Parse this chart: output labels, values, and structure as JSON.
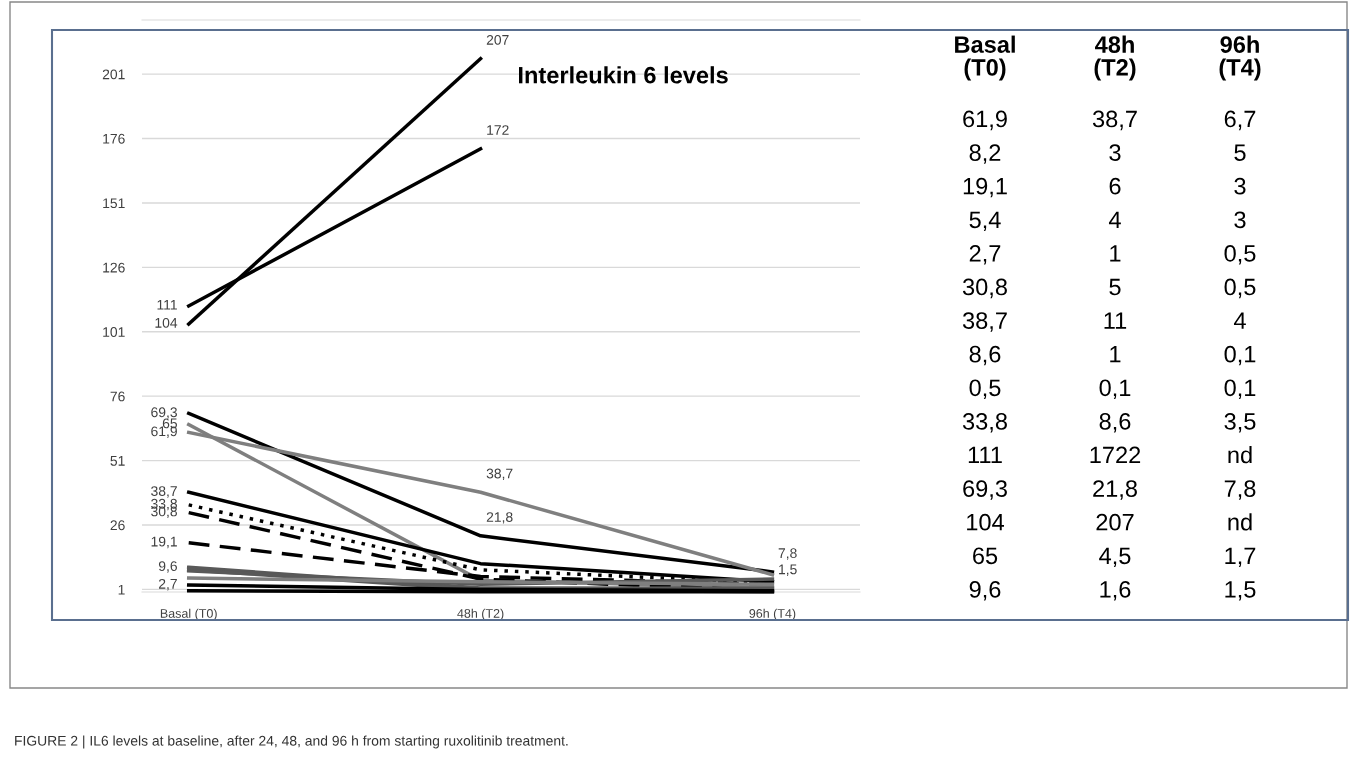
{
  "chart_data": [
    {
      "type": "line",
      "title": "Interleukin 6 levels",
      "categories": [
        "Basal (T0)",
        "48h (T2)",
        "96h (T4)"
      ],
      "ylim": [
        0,
        222
      ],
      "yticks": [
        1,
        26,
        51,
        76,
        101,
        126,
        151,
        176,
        201
      ],
      "grid": "y",
      "marker": "none",
      "annotations": [
        "FIGURE 2 | IL6 levels at baseline, after 24, 48, and 96 h from starting ruxolitinib treatment."
      ],
      "series": [
        {
          "color": "#7f7f7f",
          "values": [
            61.9,
            38.7,
            6.7
          ],
          "value_labels": [
            "61,9",
            "38,7",
            null
          ]
        },
        {
          "color": "#595959",
          "values": [
            8.2,
            3,
            5
          ],
          "value_labels": [
            null,
            null,
            null
          ]
        },
        {
          "color": "#000000",
          "line_style": "dashed",
          "values": [
            19.1,
            6,
            3
          ],
          "value_labels": [
            "19,1",
            null,
            null
          ]
        },
        {
          "color": "#7f7f7f",
          "values": [
            5.4,
            4,
            3
          ],
          "value_labels": [
            null,
            null,
            null
          ]
        },
        {
          "color": "#000000",
          "values": [
            2.7,
            1,
            0.5
          ],
          "value_labels": [
            "2,7",
            null,
            null
          ]
        },
        {
          "color": "#000000",
          "line_style": "dashed",
          "values": [
            30.8,
            5,
            0.5
          ],
          "value_labels": [
            "30,8",
            null,
            null
          ]
        },
        {
          "color": "#000000",
          "values": [
            38.7,
            11,
            4
          ],
          "value_labels": [
            "38,7",
            null,
            null
          ]
        },
        {
          "color": "#595959",
          "values": [
            8.6,
            1,
            0.1
          ],
          "value_labels": [
            null,
            null,
            null
          ]
        },
        {
          "color": "#000000",
          "values": [
            0.5,
            0.1,
            0.1
          ],
          "value_labels": [
            null,
            null,
            null
          ]
        },
        {
          "color": "#000000",
          "line_style": "dotted",
          "values": [
            33.8,
            8.6,
            3.5
          ],
          "value_labels": [
            "33,8",
            null,
            null
          ]
        },
        {
          "color": "#000000",
          "values": [
            111,
            172,
            null
          ],
          "value_labels": [
            "111",
            "172",
            null
          ]
        },
        {
          "color": "#000000",
          "values": [
            69.3,
            21.8,
            7.8
          ],
          "value_labels": [
            "69,3",
            "21,8",
            "7,8"
          ]
        },
        {
          "color": "#000000",
          "values": [
            104,
            207,
            null
          ],
          "value_labels": [
            "104",
            "207",
            null
          ]
        },
        {
          "color": "#7f7f7f",
          "values": [
            65,
            4.5,
            1.7
          ],
          "value_labels": [
            "65",
            null,
            null
          ]
        },
        {
          "color": "#595959",
          "values": [
            9.6,
            1.6,
            1.5
          ],
          "value_labels": [
            "9,6",
            null,
            "1,5"
          ]
        }
      ]
    },
    {
      "type": "other",
      "categories": [
        "Basal\n(T0)",
        "48h\n(T2)",
        "96h\n(T4)"
      ],
      "cell_labels": [
        [
          "61,9",
          "38,7",
          "6,7"
        ],
        [
          "8,2",
          "3",
          "5"
        ],
        [
          "19,1",
          "6",
          "3"
        ],
        [
          "5,4",
          "4",
          "3"
        ],
        [
          "2,7",
          "1",
          "0,5"
        ],
        [
          "30,8",
          "5",
          "0,5"
        ],
        [
          "38,7",
          "11",
          "4"
        ],
        [
          "8,6",
          "1",
          "0,1"
        ],
        [
          "0,5",
          "0,1",
          "0,1"
        ],
        [
          "33,8",
          "8,6",
          "3,5"
        ],
        [
          "111",
          "1722",
          "nd"
        ],
        [
          "69,3",
          "21,8",
          "7,8"
        ],
        [
          "104",
          "207",
          "nd"
        ],
        [
          "65",
          "4,5",
          "1,7"
        ],
        [
          "9,6",
          "1,6",
          "1,5"
        ]
      ]
    }
  ]
}
